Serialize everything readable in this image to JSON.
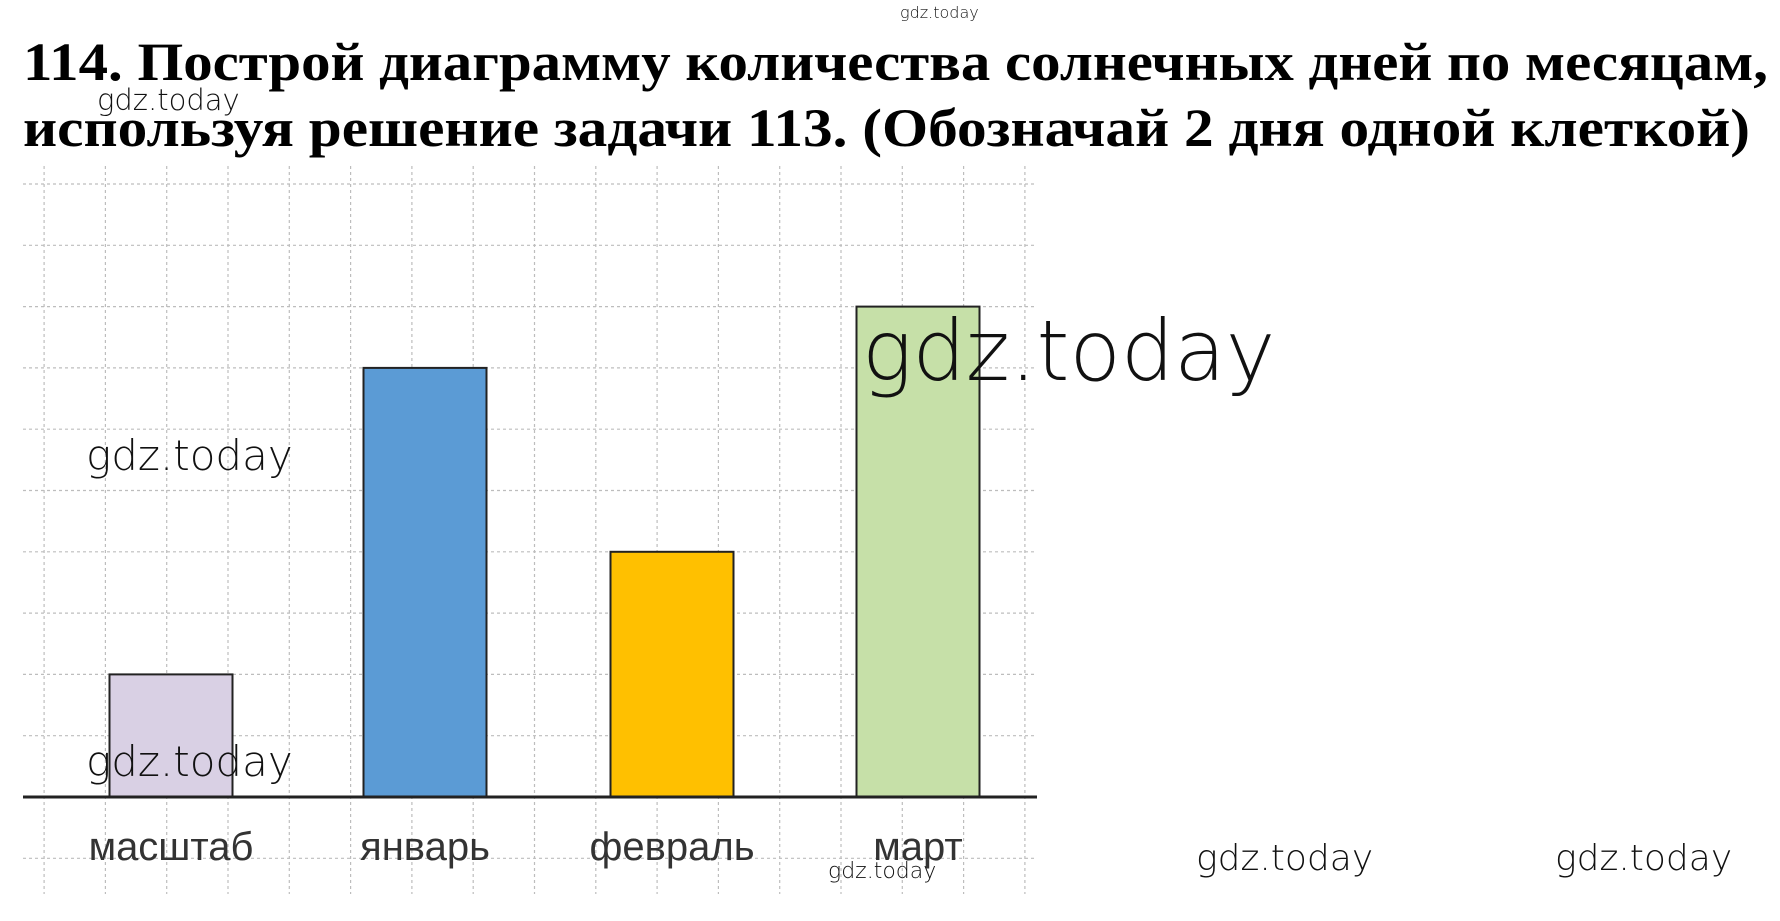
{
  "chart_data": {
    "type": "bar",
    "title_lines": [
      "114. Построй диаграмму количества солнечных дней по месяцам,",
      "используя решение задачи 113. (Обозначай 2 дня одной клеткой)"
    ],
    "categories": [
      "масштаб",
      "январь",
      "февраль",
      "март"
    ],
    "values": [
      2,
      7,
      4,
      8
    ],
    "colors": [
      "#d9d0e4",
      "#5b9bd5",
      "#ffc000",
      "#c6e0a8"
    ],
    "ylim": [
      0,
      10
    ]
  },
  "watermarks": [
    "gdz.today",
    "gdz.today",
    "gdz.today",
    "gdz.today",
    "gdz.today",
    "gdz.today",
    "gdz.today",
    "gdz.today"
  ]
}
